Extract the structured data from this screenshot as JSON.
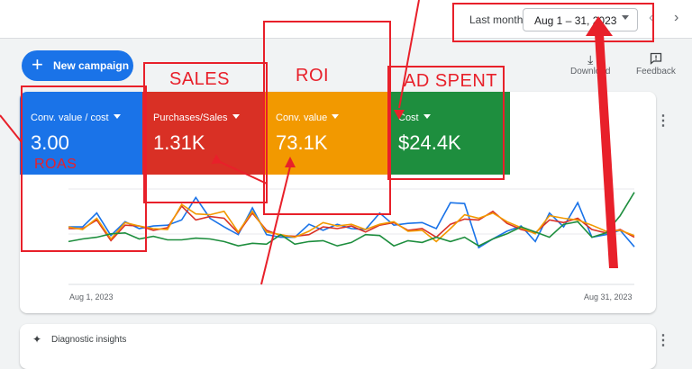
{
  "header": {
    "range_label": "Last month",
    "date_value": "Aug 1 – 31, 2023",
    "prev_label": "‹",
    "next_label": "›"
  },
  "toolbar": {
    "new_campaign_label": "New campaign",
    "download_label": "Download",
    "feedback_label": "Feedback"
  },
  "metrics": [
    {
      "label": "Conv. value / cost",
      "value": "3.00",
      "color": "#1a73e8"
    },
    {
      "label": "Purchases/Sales",
      "value": "1.31K",
      "color": "#d93025"
    },
    {
      "label": "Conv. value",
      "value": "73.1K",
      "color": "#f29900"
    },
    {
      "label": "Cost",
      "value": "$24.4K",
      "color": "#1e8e3e"
    }
  ],
  "chart": {
    "x_start_label": "Aug 1, 2023",
    "x_end_label": "Aug 31, 2023",
    "series": [
      {
        "color": "#1a73e8",
        "values": [
          52,
          52,
          68,
          42,
          58,
          50,
          53,
          54,
          60,
          86,
          62,
          52,
          43,
          74,
          43,
          40,
          40,
          55,
          48,
          55,
          50,
          49,
          68,
          54,
          56,
          57,
          50,
          80,
          79,
          28,
          38,
          47,
          53,
          35,
          68,
          52,
          80,
          40,
          43,
          48,
          29
        ]
      },
      {
        "color": "#d93025",
        "values": [
          50,
          50,
          60,
          36,
          54,
          53,
          48,
          51,
          76,
          60,
          64,
          62,
          45,
          68,
          48,
          42,
          41,
          43,
          52,
          50,
          53,
          46,
          54,
          57,
          48,
          50,
          40,
          55,
          61,
          60,
          70,
          56,
          49,
          45,
          60,
          57,
          62,
          49,
          45,
          49,
          40
        ]
      },
      {
        "color": "#f29900",
        "values": [
          52,
          49,
          62,
          38,
          57,
          53,
          50,
          49,
          78,
          67,
          66,
          70,
          46,
          70,
          46,
          43,
          40,
          47,
          57,
          53,
          55,
          49,
          55,
          58,
          47,
          48,
          35,
          50,
          66,
          62,
          68,
          58,
          51,
          44,
          65,
          62,
          60,
          54,
          47,
          48,
          42
        ]
      },
      {
        "color": "#1e8e3e",
        "values": [
          35,
          38,
          40,
          44,
          45,
          38,
          41,
          37,
          37,
          39,
          38,
          35,
          30,
          33,
          32,
          43,
          32,
          35,
          36,
          30,
          34,
          43,
          42,
          30,
          36,
          34,
          40,
          35,
          40,
          30,
          38,
          44,
          52,
          46,
          40,
          55,
          58,
          40,
          45,
          65,
          92
        ]
      }
    ]
  },
  "insights": {
    "title": "Diagnostic insights"
  },
  "annotations": {
    "roas": "ROAS",
    "sales": "SALES",
    "roi": "ROI",
    "ad_spent": "AD SPENT"
  },
  "colors": {
    "annotation": "#e8202a",
    "accent": "#1a73e8"
  }
}
